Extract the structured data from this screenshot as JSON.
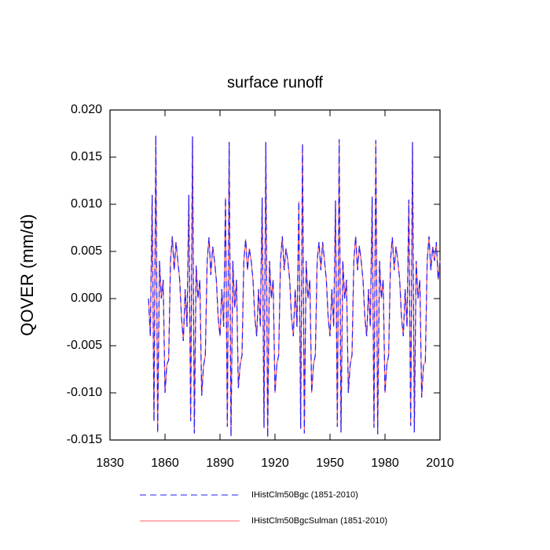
{
  "chart_data": {
    "type": "line",
    "title": "surface runoff",
    "y_label": "QOVER  (mm/d)",
    "x": [
      1851,
      1852,
      1853,
      1854,
      1855,
      1856,
      1857,
      1858,
      1859,
      1860,
      1861,
      1862,
      1863,
      1864,
      1865,
      1866,
      1867,
      1868,
      1869,
      1870,
      1871,
      1872,
      1873,
      1874,
      1875,
      1876,
      1877,
      1878,
      1879,
      1880,
      1881,
      1882,
      1883,
      1884,
      1885,
      1886,
      1887,
      1888,
      1889,
      1890,
      1891,
      1892,
      1893,
      1894,
      1895,
      1896,
      1897,
      1898,
      1899,
      1900,
      1901,
      1902,
      1903,
      1904,
      1905,
      1906,
      1907,
      1908,
      1909,
      1910,
      1911,
      1912,
      1913,
      1914,
      1915,
      1916,
      1917,
      1918,
      1919,
      1920,
      1921,
      1922,
      1923,
      1924,
      1925,
      1926,
      1927,
      1928,
      1929,
      1930,
      1931,
      1932,
      1933,
      1934,
      1935,
      1936,
      1937,
      1938,
      1939,
      1940,
      1941,
      1942,
      1943,
      1944,
      1945,
      1946,
      1947,
      1948,
      1949,
      1950,
      1951,
      1952,
      1953,
      1954,
      1955,
      1956,
      1957,
      1958,
      1959,
      1960,
      1961,
      1962,
      1963,
      1964,
      1965,
      1966,
      1967,
      1968,
      1969,
      1970,
      1971,
      1972,
      1973,
      1974,
      1975,
      1976,
      1977,
      1978,
      1979,
      1980,
      1981,
      1982,
      1983,
      1984,
      1985,
      1986,
      1987,
      1988,
      1989,
      1990,
      1991,
      1992,
      1993,
      1994,
      1995,
      1996,
      1997,
      1998,
      1999,
      2000,
      2001,
      2002,
      2003,
      2004,
      2005,
      2006,
      2007,
      2008,
      2009,
      2010
    ],
    "series": [
      {
        "name": "IHistClm50Bgc (1851-2010)",
        "color": "#2020ff",
        "dash": true,
        "values": [
          0.0,
          -0.004,
          0.011,
          -0.013,
          0.0173,
          -0.0142,
          0.004,
          0.0,
          0.002,
          -0.01,
          -0.007,
          -0.0065,
          0.004,
          0.0066,
          0.003,
          0.006,
          0.004,
          0.002,
          -0.002,
          -0.0045,
          0.001,
          -0.003,
          0.011,
          -0.013,
          0.0172,
          -0.0143,
          0.0035,
          0.0,
          0.002,
          -0.0103,
          -0.0072,
          -0.006,
          0.004,
          0.0065,
          0.0025,
          0.0055,
          0.004,
          0.002,
          -0.002,
          -0.004,
          0.001,
          -0.003,
          0.0107,
          -0.0136,
          0.0166,
          -0.0146,
          0.004,
          -0.001,
          0.002,
          -0.0095,
          -0.007,
          -0.006,
          0.004,
          0.0063,
          0.003,
          0.0053,
          0.004,
          0.002,
          -0.002,
          -0.004,
          0.001,
          -0.003,
          0.0107,
          -0.0137,
          0.0166,
          -0.0147,
          0.004,
          0.0,
          0.002,
          -0.01,
          -0.007,
          -0.006,
          0.004,
          0.0066,
          0.003,
          0.0053,
          0.004,
          0.002,
          -0.002,
          -0.004,
          0.001,
          -0.003,
          0.0103,
          -0.0138,
          0.0164,
          -0.0143,
          0.004,
          0.0,
          0.002,
          -0.01,
          -0.007,
          -0.006,
          0.004,
          0.006,
          0.003,
          0.006,
          0.004,
          0.002,
          -0.002,
          -0.004,
          0.001,
          -0.003,
          0.0104,
          -0.0136,
          0.0169,
          -0.0142,
          0.004,
          0.0,
          0.002,
          -0.01,
          -0.007,
          -0.006,
          0.004,
          0.0066,
          0.003,
          0.0056,
          0.004,
          0.002,
          -0.002,
          -0.004,
          0.001,
          -0.003,
          0.0108,
          -0.0137,
          0.0168,
          -0.0144,
          0.004,
          0.0,
          0.002,
          -0.01,
          -0.007,
          -0.006,
          0.004,
          0.0065,
          0.003,
          0.0055,
          0.004,
          0.002,
          -0.002,
          -0.004,
          0.001,
          -0.003,
          0.0105,
          -0.0135,
          0.0166,
          -0.0142,
          0.004,
          0.0,
          0.002,
          -0.0105,
          -0.007,
          -0.0068,
          0.004,
          0.0066,
          0.003,
          0.0055,
          0.004,
          0.006,
          0.002,
          0.004
        ]
      },
      {
        "name": "IHistClm50BgcSulman (1851-2010)",
        "color": "#ff6060",
        "dash": false,
        "values": [
          0.0,
          -0.004,
          0.011,
          -0.013,
          0.0173,
          -0.0142,
          0.004,
          0.0,
          0.002,
          -0.01,
          -0.007,
          -0.0065,
          0.004,
          0.0066,
          0.003,
          0.006,
          0.004,
          0.002,
          -0.002,
          -0.0045,
          0.001,
          -0.003,
          0.011,
          -0.013,
          0.0172,
          -0.0143,
          0.0035,
          0.0,
          0.002,
          -0.0103,
          -0.0072,
          -0.006,
          0.004,
          0.0065,
          0.0025,
          0.0055,
          0.004,
          0.002,
          -0.002,
          -0.004,
          0.001,
          -0.003,
          0.0107,
          -0.0136,
          0.0166,
          -0.0146,
          0.004,
          -0.001,
          0.002,
          -0.0095,
          -0.007,
          -0.006,
          0.004,
          0.0063,
          0.003,
          0.0053,
          0.004,
          0.002,
          -0.002,
          -0.004,
          0.001,
          -0.003,
          0.0107,
          -0.0137,
          0.0166,
          -0.0147,
          0.004,
          0.0,
          0.002,
          -0.01,
          -0.007,
          -0.006,
          0.004,
          0.0066,
          0.003,
          0.0053,
          0.004,
          0.002,
          -0.002,
          -0.004,
          0.001,
          -0.003,
          0.0103,
          -0.0138,
          0.0164,
          -0.0143,
          0.004,
          0.0,
          0.002,
          -0.01,
          -0.007,
          -0.006,
          0.004,
          0.006,
          0.003,
          0.006,
          0.004,
          0.002,
          -0.002,
          -0.004,
          0.001,
          -0.003,
          0.0104,
          -0.0136,
          0.0169,
          -0.0142,
          0.004,
          0.0,
          0.002,
          -0.01,
          -0.007,
          -0.006,
          0.004,
          0.0066,
          0.003,
          0.0056,
          0.004,
          0.002,
          -0.002,
          -0.004,
          0.001,
          -0.003,
          0.0108,
          -0.0137,
          0.0168,
          -0.0144,
          0.004,
          0.0,
          0.002,
          -0.01,
          -0.007,
          -0.006,
          0.004,
          0.0065,
          0.003,
          0.0055,
          0.004,
          0.002,
          -0.002,
          -0.004,
          0.001,
          -0.003,
          0.0105,
          -0.0135,
          0.0166,
          -0.0142,
          0.004,
          0.0,
          0.002,
          -0.0105,
          -0.007,
          -0.0068,
          0.004,
          0.0066,
          0.003,
          0.0055,
          0.004,
          0.006,
          0.002,
          0.004
        ]
      }
    ],
    "xlim": [
      1830,
      2010
    ],
    "xticks": [
      1830,
      1860,
      1890,
      1920,
      1950,
      1980,
      2010
    ],
    "ylim": [
      -0.015,
      0.02
    ],
    "yticks": [
      {
        "value": -0.015,
        "label": "-0.015"
      },
      {
        "value": -0.01,
        "label": "-0.010"
      },
      {
        "value": -0.005,
        "label": "-0.005"
      },
      {
        "value": 0,
        "label": "0.000"
      },
      {
        "value": 0.005,
        "label": "0.005"
      },
      {
        "value": 0.01,
        "label": "0.010"
      },
      {
        "value": 0.015,
        "label": "0.015"
      },
      {
        "value": 0.02,
        "label": "0.020"
      }
    ]
  }
}
